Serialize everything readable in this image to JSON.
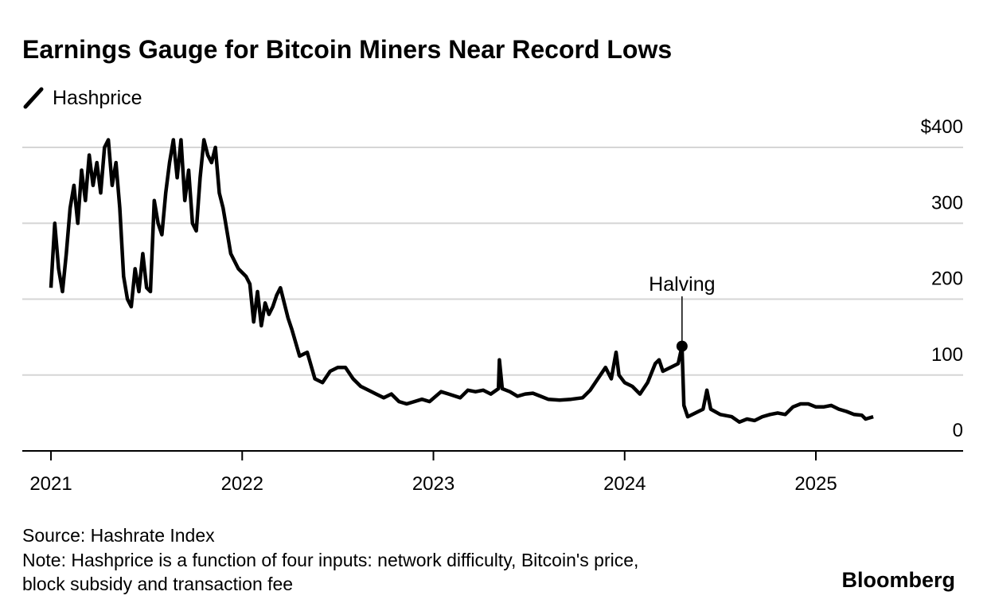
{
  "chart_data": {
    "type": "line",
    "title": "Earnings Gauge for Bitcoin Miners Near Record Lows",
    "source": "Source: Hashrate Index",
    "note": [
      "Note: Hashprice is a function of four inputs: network difficulty, Bitcoin's price,",
      "block subsidy and transaction fee"
    ],
    "brand": "Bloomberg",
    "annotation": {
      "text": "Halving",
      "x": 2024.3,
      "y": 138
    },
    "x": [
      2021.0,
      2021.02,
      2021.04,
      2021.06,
      2021.08,
      2021.1,
      2021.12,
      2021.14,
      2021.16,
      2021.18,
      2021.2,
      2021.22,
      2021.24,
      2021.26,
      2021.28,
      2021.3,
      2021.32,
      2021.34,
      2021.36,
      2021.38,
      2021.4,
      2021.42,
      2021.44,
      2021.46,
      2021.48,
      2021.5,
      2021.52,
      2021.54,
      2021.56,
      2021.58,
      2021.6,
      2021.62,
      2021.64,
      2021.66,
      2021.68,
      2021.7,
      2021.72,
      2021.74,
      2021.76,
      2021.78,
      2021.8,
      2021.82,
      2021.84,
      2021.86,
      2021.88,
      2021.9,
      2021.92,
      2021.94,
      2021.96,
      2021.98,
      2022.02,
      2022.04,
      2022.06,
      2022.08,
      2022.1,
      2022.12,
      2022.14,
      2022.16,
      2022.18,
      2022.2,
      2022.22,
      2022.24,
      2022.26,
      2022.3,
      2022.34,
      2022.38,
      2022.42,
      2022.46,
      2022.5,
      2022.54,
      2022.58,
      2022.62,
      2022.66,
      2022.7,
      2022.74,
      2022.78,
      2022.82,
      2022.86,
      2022.9,
      2022.94,
      2022.98,
      2023.04,
      2023.08,
      2023.14,
      2023.18,
      2023.22,
      2023.26,
      2023.3,
      2023.34,
      2023.345,
      2023.36,
      2023.4,
      2023.44,
      2023.48,
      2023.52,
      2023.56,
      2023.6,
      2023.66,
      2023.72,
      2023.78,
      2023.82,
      2023.86,
      2023.9,
      2023.93,
      2023.955,
      2023.97,
      2024.0,
      2024.04,
      2024.08,
      2024.12,
      2024.16,
      2024.18,
      2024.2,
      2024.24,
      2024.28,
      2024.3,
      2024.31,
      2024.33,
      2024.37,
      2024.41,
      2024.43,
      2024.45,
      2024.5,
      2024.56,
      2024.6,
      2024.64,
      2024.68,
      2024.72,
      2024.76,
      2024.8,
      2024.84,
      2024.88,
      2024.92,
      2024.96,
      2025.0,
      2025.04,
      2025.08,
      2025.12,
      2025.16,
      2025.2,
      2025.24,
      2025.26,
      2025.3
    ],
    "series": [
      {
        "name": "Hashprice",
        "color": "#000000",
        "values": [
          215,
          300,
          240,
          210,
          260,
          320,
          350,
          300,
          370,
          330,
          390,
          350,
          380,
          340,
          400,
          410,
          350,
          380,
          320,
          230,
          200,
          190,
          240,
          210,
          260,
          215,
          210,
          330,
          300,
          285,
          340,
          380,
          410,
          360,
          410,
          330,
          370,
          300,
          290,
          360,
          410,
          390,
          380,
          400,
          340,
          320,
          290,
          260,
          250,
          240,
          230,
          220,
          170,
          210,
          165,
          195,
          180,
          190,
          205,
          215,
          195,
          175,
          160,
          125,
          130,
          95,
          90,
          105,
          110,
          110,
          95,
          85,
          80,
          75,
          70,
          75,
          65,
          62,
          65,
          68,
          65,
          78,
          75,
          70,
          80,
          78,
          80,
          75,
          82,
          120,
          82,
          78,
          72,
          75,
          76,
          72,
          68,
          67,
          68,
          70,
          80,
          95,
          110,
          95,
          130,
          100,
          90,
          85,
          75,
          90,
          115,
          120,
          105,
          110,
          115,
          138,
          60,
          45,
          50,
          55,
          80,
          55,
          48,
          45,
          38,
          42,
          40,
          45,
          48,
          50,
          48,
          58,
          62,
          62,
          58,
          58,
          60,
          55,
          52,
          48,
          47,
          42,
          45
        ]
      }
    ],
    "xlim": [
      2020.85,
      2025.77
    ],
    "xticks": [
      2021,
      2022,
      2023,
      2024,
      2025
    ],
    "ylim": [
      0,
      420
    ],
    "yticks": [
      0,
      100,
      200,
      300,
      {
        "value": 400,
        "label": "$400"
      }
    ],
    "grid": true
  }
}
